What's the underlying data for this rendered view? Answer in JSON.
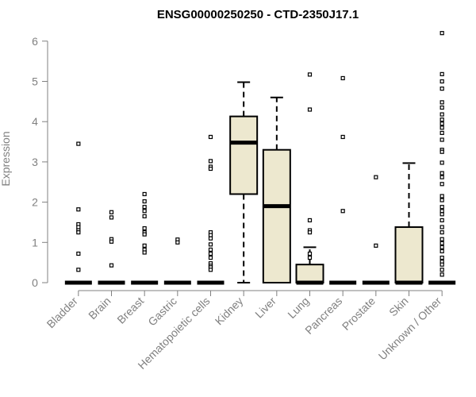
{
  "chart_data": {
    "type": "boxplot",
    "title": "ENSG00000250250 - CTD-2350J17.1",
    "ylabel": "Expression",
    "xlabel": "",
    "ylim": [
      0,
      6.2
    ],
    "yticks": [
      0,
      1,
      2,
      3,
      4,
      5,
      6
    ],
    "grid": false,
    "box_fill": "#ede8cf",
    "outline_color": "#000000",
    "axis_color": "#808080",
    "categories": [
      "Bladder",
      "Brain",
      "Breast",
      "Gastric",
      "Hematopoietic cells",
      "Kidney",
      "Liver",
      "Lung",
      "Pancreas",
      "Prostate",
      "Skin",
      "Unknown / Other"
    ],
    "boxes": [
      {
        "min": 0,
        "q1": 0,
        "median": 0,
        "q3": 0,
        "max": 0,
        "outliers": [
          3.45,
          1.82,
          1.45,
          1.38,
          1.3,
          1.25,
          0.72,
          0.32
        ]
      },
      {
        "min": 0,
        "q1": 0,
        "median": 0,
        "q3": 0,
        "max": 0,
        "outliers": [
          1.75,
          1.62,
          1.08,
          1.02,
          0.43
        ]
      },
      {
        "min": 0,
        "q1": 0,
        "median": 0,
        "q3": 0,
        "max": 0,
        "outliers": [
          2.2,
          2.02,
          1.88,
          1.78,
          1.65,
          1.35,
          1.25,
          1.2,
          0.92,
          0.82,
          0.75
        ]
      },
      {
        "min": 0,
        "q1": 0,
        "median": 0,
        "q3": 0,
        "max": 0,
        "outliers": [
          1.07,
          1.0
        ]
      },
      {
        "min": 0,
        "q1": 0,
        "median": 0,
        "q3": 0,
        "max": 0,
        "outliers": [
          3.62,
          3.02,
          2.88,
          2.83,
          1.25,
          1.18,
          1.1,
          0.95,
          0.82,
          0.72,
          0.62,
          0.48,
          0.42,
          0.38,
          0.32
        ]
      },
      {
        "min": 0,
        "q1": 2.2,
        "median": 3.48,
        "q3": 4.13,
        "max": 4.98,
        "outliers": []
      },
      {
        "min": 0,
        "q1": 0,
        "median": 1.9,
        "q3": 3.3,
        "max": 4.6,
        "outliers": []
      },
      {
        "min": 0,
        "q1": 0,
        "median": 0,
        "q3": 0.45,
        "max": 0.88,
        "outliers": [
          5.17,
          4.3,
          1.55,
          1.3,
          1.25,
          0.72,
          0.62
        ]
      },
      {
        "min": 0,
        "q1": 0,
        "median": 0,
        "q3": 0,
        "max": 0,
        "outliers": [
          5.08,
          3.62,
          1.78
        ]
      },
      {
        "min": 0,
        "q1": 0,
        "median": 0,
        "q3": 0,
        "max": 0,
        "outliers": [
          2.62,
          0.92
        ]
      },
      {
        "min": 0,
        "q1": 0,
        "median": 0,
        "q3": 1.38,
        "max": 2.97,
        "outliers": []
      },
      {
        "min": 0,
        "q1": 0,
        "median": 0,
        "q3": 0,
        "max": 0,
        "outliers": [
          6.2,
          5.18,
          5.0,
          4.82,
          4.48,
          4.35,
          4.18,
          4.05,
          3.95,
          3.85,
          3.72,
          3.55,
          3.3,
          3.25,
          2.98,
          2.72,
          2.62,
          2.45,
          2.15,
          2.05,
          1.88,
          1.78,
          1.7,
          1.55,
          1.38,
          1.25,
          1.08,
          0.98,
          0.88,
          0.78,
          0.62,
          0.52,
          0.45,
          0.32,
          0.2
        ]
      }
    ]
  }
}
